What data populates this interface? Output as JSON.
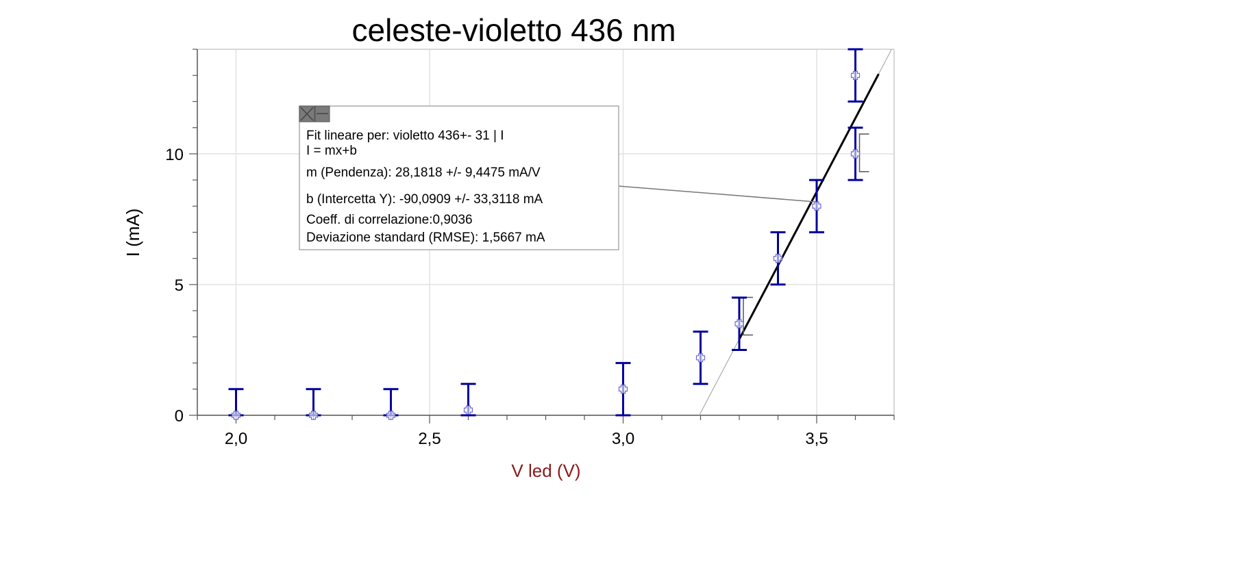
{
  "chart_data": {
    "type": "scatter",
    "title": "celeste-violetto 436 nm",
    "xlabel": "V led (V)",
    "ylabel": "I (mA)",
    "xlim": [
      1.9,
      3.7
    ],
    "ylim": [
      0,
      14
    ],
    "x_ticks": [
      "2,0",
      "2,5",
      "3,0",
      "3,5"
    ],
    "x_tick_values": [
      2.0,
      2.5,
      3.0,
      3.5
    ],
    "y_ticks": [
      "0",
      "5",
      "10"
    ],
    "y_tick_values": [
      0,
      5,
      10
    ],
    "grid": true,
    "colors": {
      "points": "#0000a0",
      "marker": "#6a6ad0",
      "fit": "#000000",
      "xlabel": "#8b1a1a"
    },
    "series": [
      {
        "x": [
          2.0,
          2.2,
          2.4,
          2.6,
          3.0,
          3.2,
          3.3,
          3.4,
          3.5,
          3.6,
          3.6
        ],
        "y": [
          0,
          0,
          0,
          0.2,
          1.0,
          2.2,
          3.5,
          6.0,
          8.0,
          10.0,
          13.0
        ],
        "yerr": [
          1,
          1,
          1,
          1,
          1,
          1,
          1,
          1,
          1,
          1,
          1
        ]
      }
    ],
    "fit": {
      "m": 28.1818,
      "b": -90.0909,
      "x_range": [
        3.3,
        3.66
      ],
      "region_brackets": [
        [
          3.3,
          3.07,
          4.51
        ],
        [
          3.6,
          9.32,
          10.76
        ]
      ]
    },
    "annotation": {
      "lines": [
        "Fit lineare per: violetto 436+- 31 | I",
        "I = mx+b",
        "m (Pendenza): 28,1818 +/- 9,4475 mA/V",
        "b (Intercetta Y): -90,0909 +/- 33,3118 mA",
        "Coeff. di correlazione:0,9036",
        "Deviazione standard (RMSE): 1,5667 mA"
      ],
      "close_icon": "close-icon",
      "minimize_icon": "minimize-icon"
    }
  }
}
